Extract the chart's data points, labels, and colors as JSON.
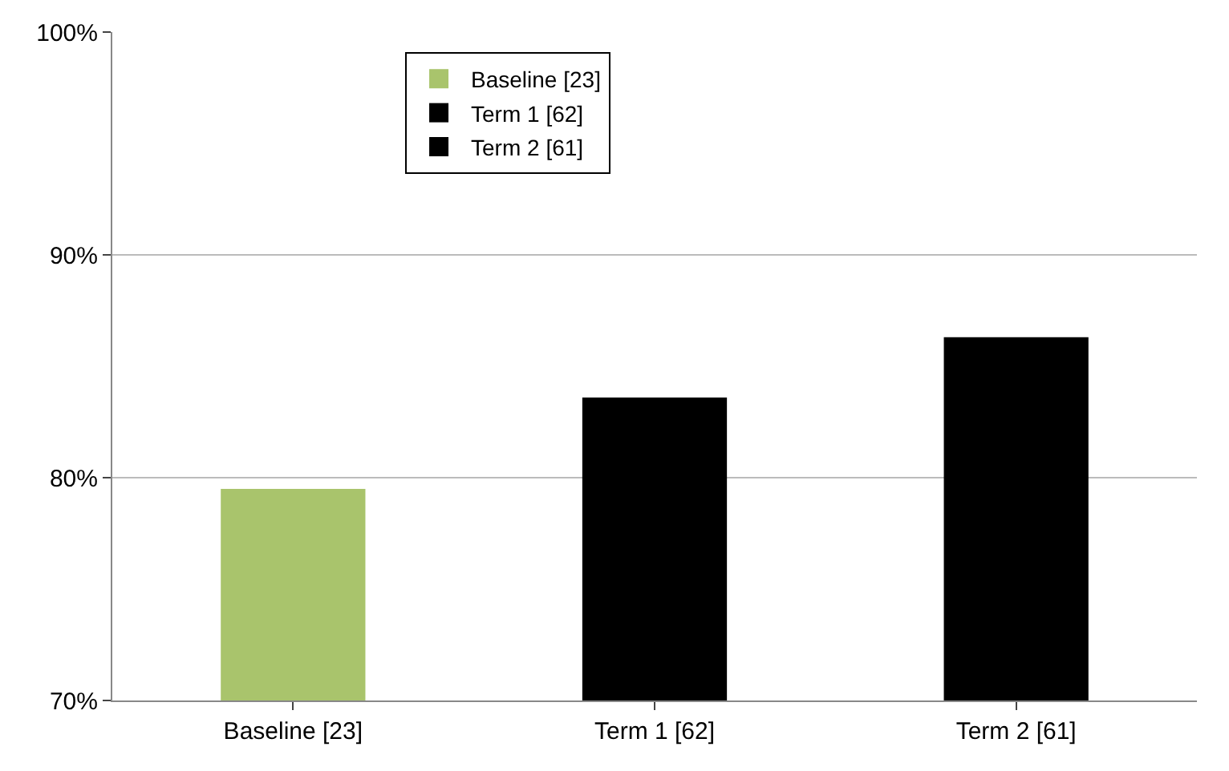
{
  "chart_data": {
    "type": "bar",
    "categories": [
      "Baseline [23]",
      "Term 1 [62]",
      "Term 2 [61]"
    ],
    "series": [
      {
        "name": "Baseline [23]",
        "color": "#a9c46c",
        "values": [
          79.5,
          null,
          null
        ]
      },
      {
        "name": "Term 1 [62]",
        "color": "#000000",
        "values": [
          null,
          83.6,
          null
        ]
      },
      {
        "name": "Term 2 [61]",
        "color": "#000000",
        "values": [
          null,
          null,
          86.3
        ]
      }
    ],
    "ylim": [
      70,
      100
    ],
    "yticks": [
      {
        "value": 70,
        "label": "70%"
      },
      {
        "value": 80,
        "label": "80%"
      },
      {
        "value": 90,
        "label": "90%"
      },
      {
        "value": 100,
        "label": "100%"
      }
    ],
    "grid": "y",
    "legend": "top left"
  }
}
